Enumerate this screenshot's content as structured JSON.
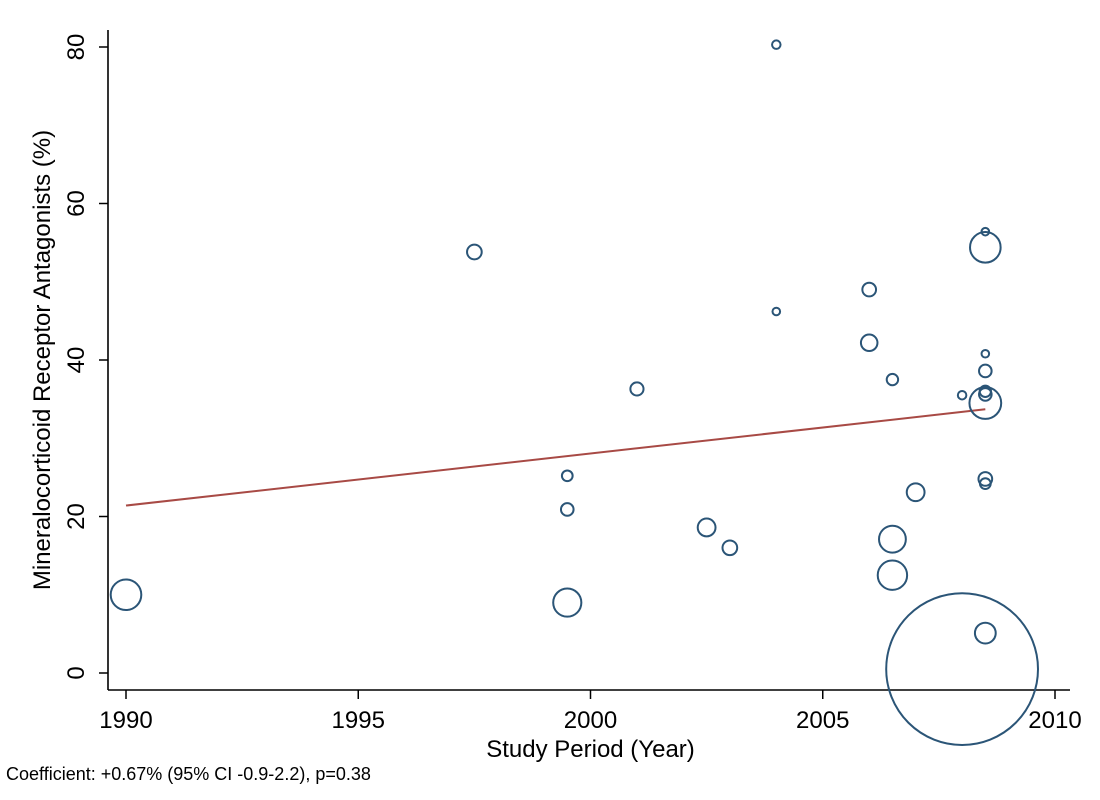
{
  "chart_data": {
    "type": "scatter",
    "title": "",
    "xlabel": "Study Period (Year)",
    "ylabel": "Mineralocorticoid Receptor Antagonists (%)",
    "xlim": [
      1990,
      2010
    ],
    "ylim": [
      0,
      80
    ],
    "xticks": [
      1990,
      1995,
      2000,
      2005,
      2010
    ],
    "yticks": [
      0,
      20,
      40,
      60,
      80
    ],
    "grid": false,
    "legend": "none",
    "marker_color": "#2b5577",
    "fit_color": "#a84a45",
    "points": [
      {
        "x": 1990.0,
        "y": 10.0,
        "weight": 6.5
      },
      {
        "x": 1997.5,
        "y": 53.8,
        "weight": 1.5
      },
      {
        "x": 1999.5,
        "y": 25.2,
        "weight": 0.8
      },
      {
        "x": 1999.5,
        "y": 20.9,
        "weight": 1.1
      },
      {
        "x": 1999.5,
        "y": 9.0,
        "weight": 5.5
      },
      {
        "x": 2001.0,
        "y": 36.3,
        "weight": 1.2
      },
      {
        "x": 2002.5,
        "y": 18.6,
        "weight": 2.2
      },
      {
        "x": 2003.0,
        "y": 16.0,
        "weight": 1.5
      },
      {
        "x": 2004.0,
        "y": 80.3,
        "weight": 0.5
      },
      {
        "x": 2004.0,
        "y": 46.2,
        "weight": 0.4
      },
      {
        "x": 2006.0,
        "y": 49.0,
        "weight": 1.3
      },
      {
        "x": 2006.0,
        "y": 42.2,
        "weight": 1.9
      },
      {
        "x": 2006.5,
        "y": 37.5,
        "weight": 0.9
      },
      {
        "x": 2006.5,
        "y": 17.1,
        "weight": 5.0
      },
      {
        "x": 2006.5,
        "y": 12.5,
        "weight": 6.0
      },
      {
        "x": 2007.0,
        "y": 23.1,
        "weight": 2.2
      },
      {
        "x": 2008.0,
        "y": 35.5,
        "weight": 0.5
      },
      {
        "x": 2008.0,
        "y": 0.5,
        "weight": 160
      },
      {
        "x": 2008.5,
        "y": 56.4,
        "weight": 0.4
      },
      {
        "x": 2008.5,
        "y": 54.4,
        "weight": 6.5
      },
      {
        "x": 2008.5,
        "y": 40.8,
        "weight": 0.4
      },
      {
        "x": 2008.5,
        "y": 38.6,
        "weight": 1.1
      },
      {
        "x": 2008.5,
        "y": 36.0,
        "weight": 0.9
      },
      {
        "x": 2008.5,
        "y": 35.6,
        "weight": 1.1
      },
      {
        "x": 2008.5,
        "y": 34.5,
        "weight": 7.0
      },
      {
        "x": 2008.5,
        "y": 24.8,
        "weight": 1.3
      },
      {
        "x": 2008.5,
        "y": 24.2,
        "weight": 0.8
      },
      {
        "x": 2008.5,
        "y": 5.1,
        "weight": 3.0
      }
    ],
    "fit_line": {
      "x": [
        1990,
        2008.5
      ],
      "y": [
        21.4,
        33.7
      ]
    }
  },
  "footnote": "Coefficient: +0.67% (95% CI -0.9-2.2), p=0.38"
}
